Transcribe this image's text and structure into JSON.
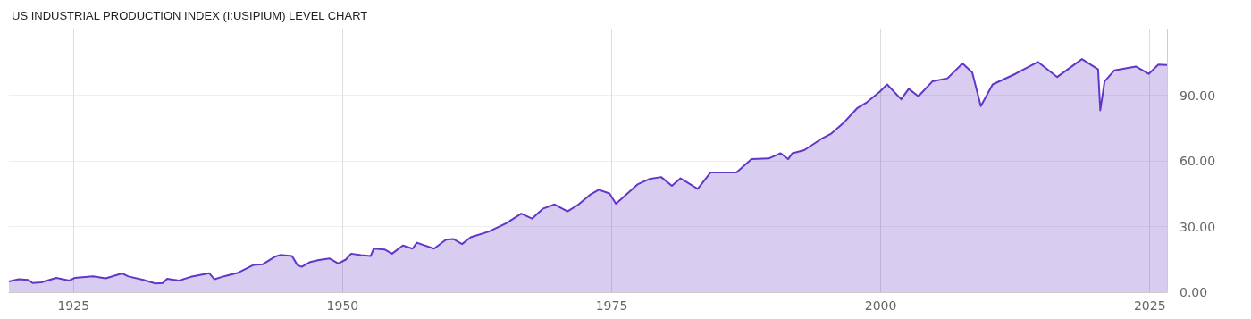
{
  "chart_data": {
    "type": "area",
    "title": "US INDUSTRIAL PRODUCTION INDEX (I:USIPIUM) LEVEL CHART",
    "x": [
      1919.0,
      1919.9,
      1920.8,
      1921.2,
      1922.0,
      1923.4,
      1924.6,
      1925.1,
      1926.8,
      1928.0,
      1929.5,
      1930.1,
      1931.5,
      1932.6,
      1933.3,
      1933.7,
      1934.8,
      1935.9,
      1937.6,
      1938.1,
      1938.8,
      1939.8,
      1940.3,
      1941.7,
      1942.6,
      1943.7,
      1944.2,
      1945.3,
      1945.8,
      1946.2,
      1947.0,
      1947.8,
      1948.8,
      1949.6,
      1950.3,
      1950.8,
      1951.7,
      1952.6,
      1952.9,
      1953.9,
      1954.6,
      1955.6,
      1956.5,
      1956.9,
      1958.5,
      1959.6,
      1960.3,
      1961.1,
      1961.9,
      1963.6,
      1965.2,
      1966.6,
      1967.6,
      1968.6,
      1969.7,
      1970.9,
      1971.9,
      1973.0,
      1973.8,
      1974.8,
      1975.4,
      1975.8,
      1977.4,
      1978.5,
      1979.6,
      1980.6,
      1981.4,
      1983.0,
      1984.2,
      1986.6,
      1988.0,
      1989.6,
      1990.7,
      1991.4,
      1991.8,
      1992.9,
      1994.6,
      1995.4,
      1996.5,
      1997.8,
      1998.7,
      1999.9,
      2000.6,
      2001.9,
      2002.6,
      2003.5,
      2004.8,
      2006.2,
      2007.6,
      2008.5,
      2009.3,
      2010.4,
      2012.5,
      2014.6,
      2016.4,
      2018.7,
      2020.2,
      2020.4,
      2020.8,
      2021.7,
      2023.7,
      2024.9,
      2025.8,
      2026.6
    ],
    "series": [
      {
        "color": "#6236c8",
        "values": [
          4.9,
          5.9,
          5.6,
          4.2,
          4.5,
          6.5,
          5.3,
          6.5,
          7.2,
          6.3,
          8.6,
          7.2,
          5.6,
          4.0,
          4.2,
          6.1,
          5.3,
          7.0,
          8.7,
          5.9,
          7.0,
          8.3,
          8.9,
          12.4,
          12.8,
          16.2,
          17.0,
          16.5,
          12.4,
          11.6,
          13.8,
          14.7,
          15.4,
          13.1,
          14.9,
          17.6,
          16.9,
          16.5,
          19.9,
          19.5,
          17.6,
          21.3,
          19.9,
          22.6,
          19.9,
          24.0,
          24.3,
          22.0,
          25.1,
          27.7,
          31.5,
          35.9,
          33.6,
          38.1,
          40.1,
          36.9,
          40.0,
          44.5,
          46.8,
          45.1,
          40.4,
          42.1,
          49.2,
          51.7,
          52.6,
          48.6,
          52.0,
          47.2,
          54.7,
          54.7,
          60.8,
          61.1,
          63.5,
          60.8,
          63.5,
          64.9,
          70.4,
          72.4,
          77.1,
          84.0,
          86.7,
          91.5,
          94.9,
          88.1,
          92.9,
          89.5,
          96.3,
          97.7,
          104.5,
          100.4,
          85.0,
          94.9,
          99.7,
          105.2,
          98.3,
          106.5,
          101.8,
          83.1,
          96.3,
          101.3,
          103.1,
          99.7,
          104.0,
          103.8
        ]
      }
    ],
    "xlim": [
      1919.0,
      2026.6
    ],
    "xticks": [
      1925,
      1950,
      1975,
      2000,
      2025
    ],
    "ylim": [
      0,
      120
    ],
    "yticks": [
      {
        "value": 0,
        "label": "0.00"
      },
      {
        "value": 30,
        "label": "30.00"
      },
      {
        "value": 60,
        "label": "60.00"
      },
      {
        "value": 90,
        "label": "90.00"
      }
    ],
    "grid": true
  }
}
